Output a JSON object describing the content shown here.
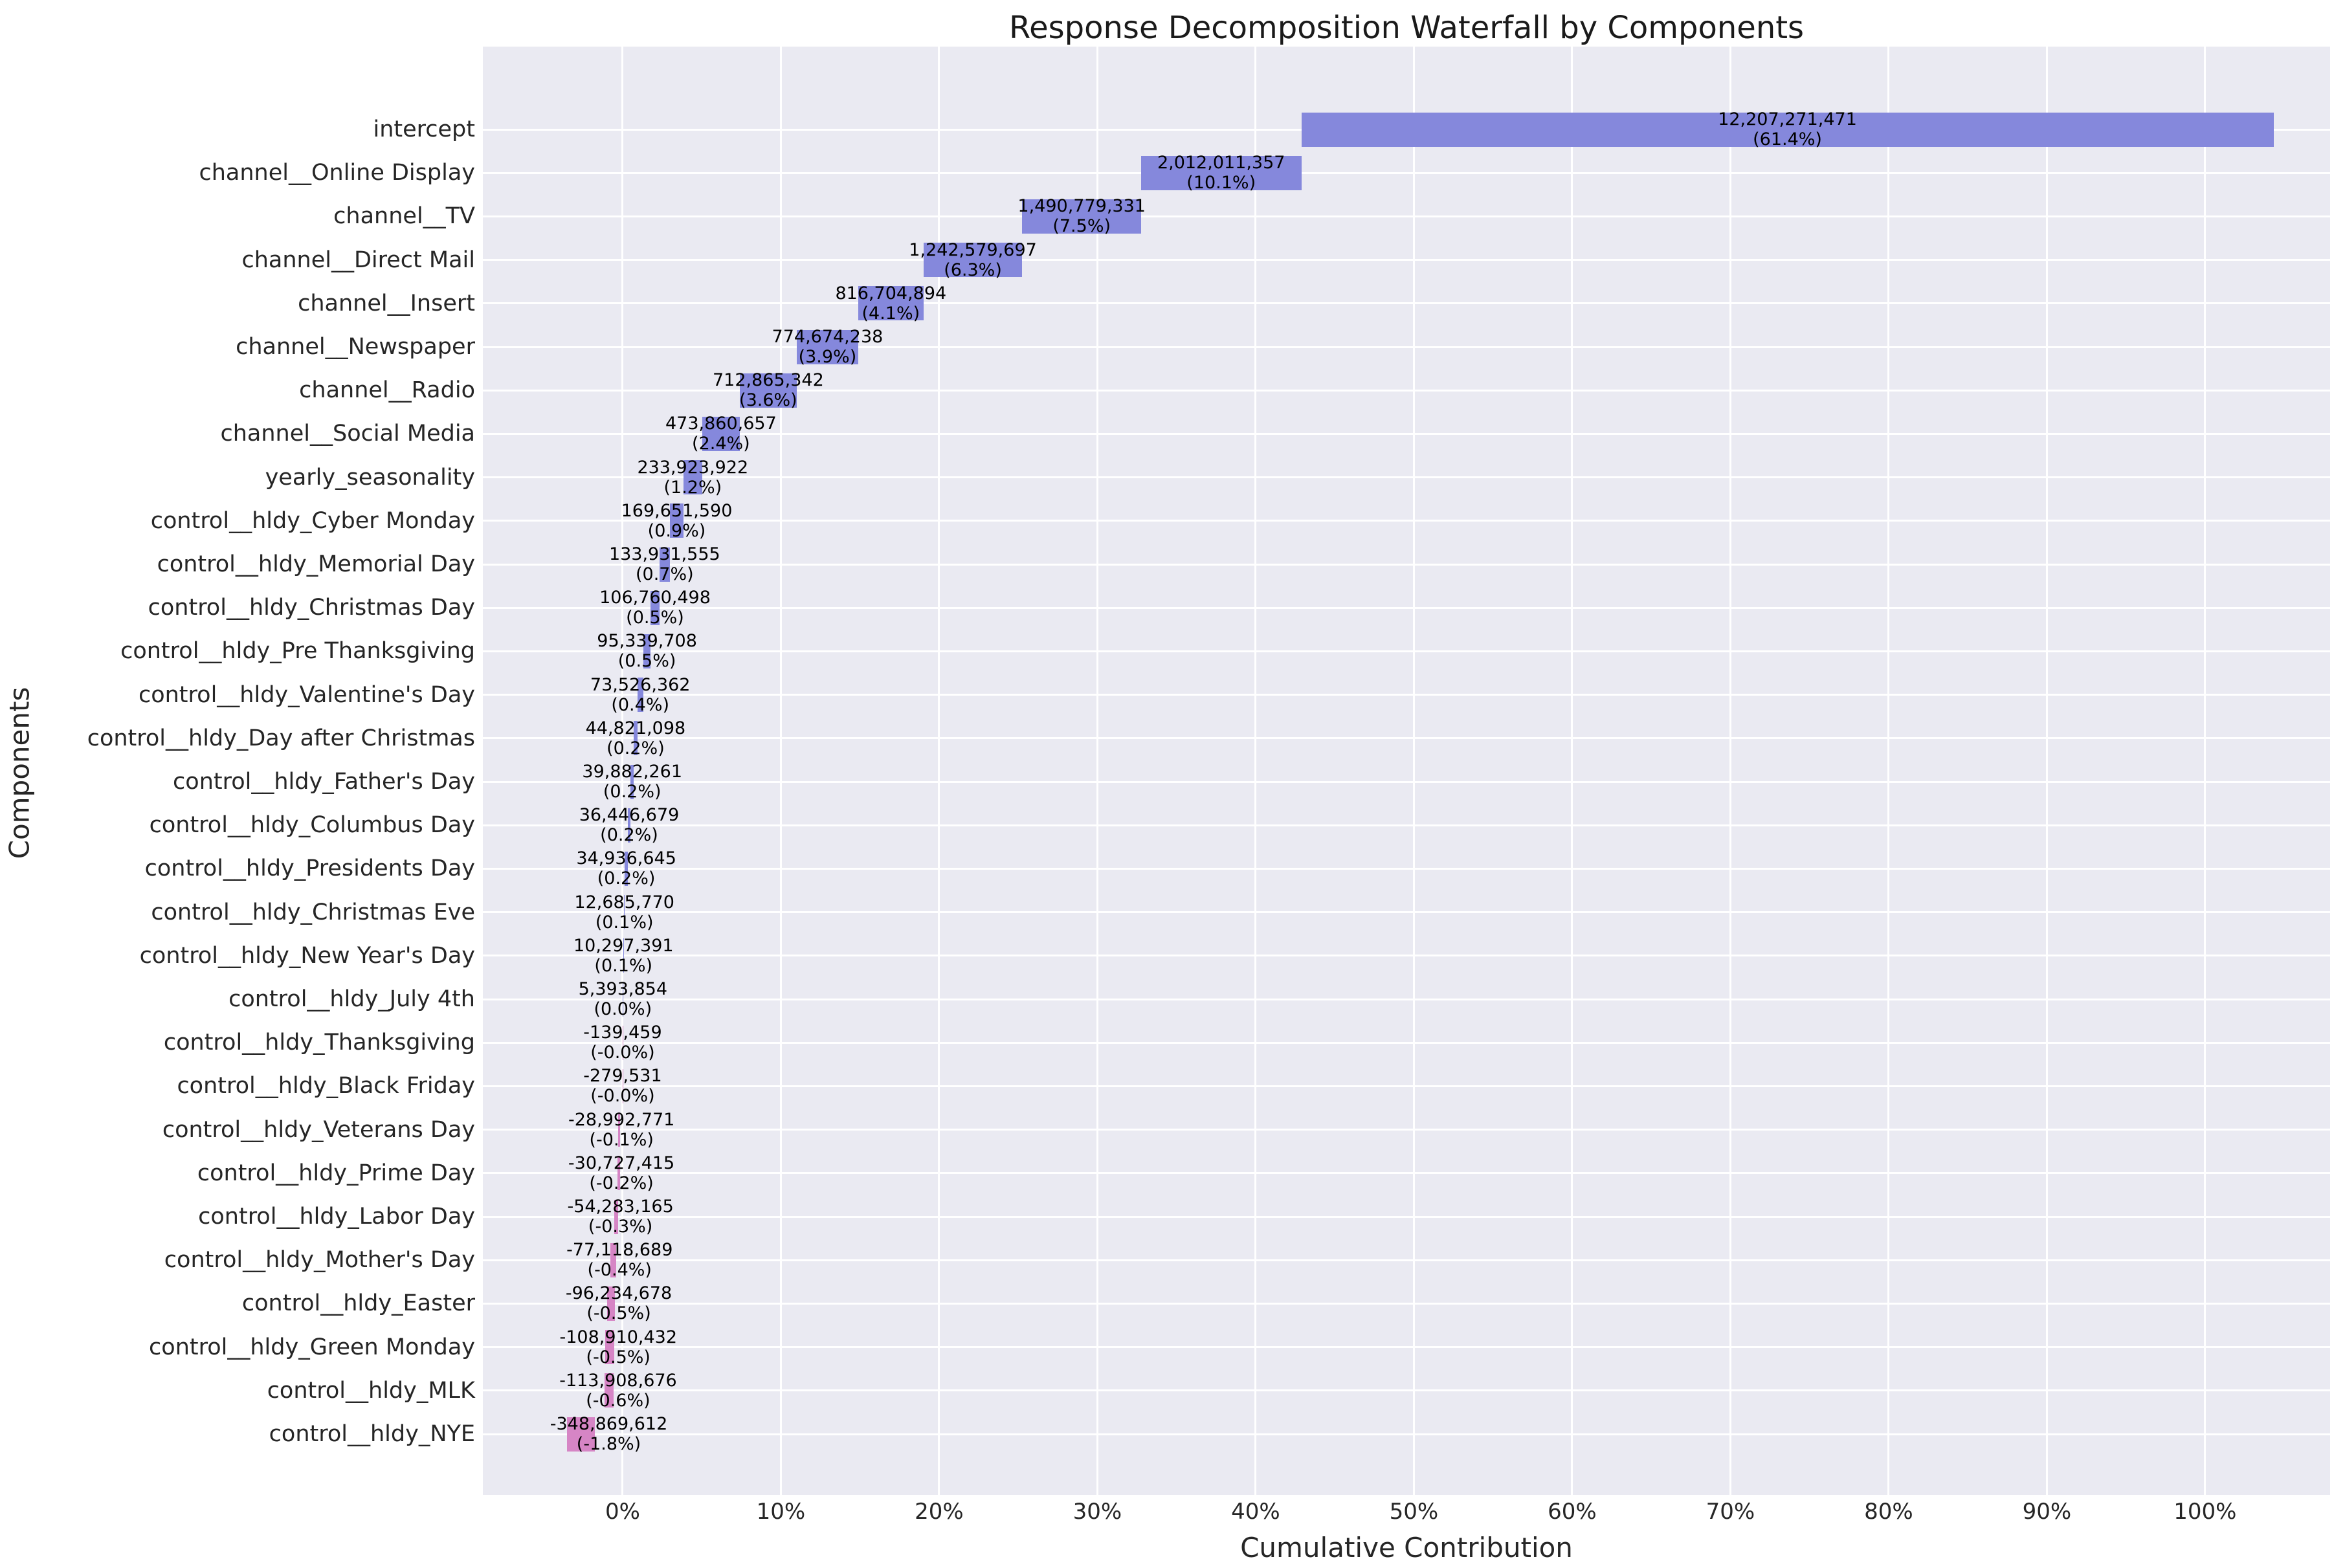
{
  "title": "Response Decomposition Waterfall by Components",
  "axes": {
    "x_label": "Cumulative Contribution",
    "y_label": "Components"
  },
  "colors": {
    "positive_bar": "#8588DC",
    "negative_bar": "#D685C5",
    "plot_background": "#EAEAF2",
    "gridline": "#FFFFFF",
    "tick_text": "#262626",
    "annotation_text": "#000000",
    "title_text": "#1A1A1A",
    "figure_background": "#FFFFFF"
  },
  "chart_data": {
    "type": "bar",
    "subtype": "horizontal-waterfall",
    "title": "Response Decomposition Waterfall by Components",
    "xlabel": "Cumulative Contribution",
    "ylabel": "Components",
    "legend": null,
    "grid": true,
    "xlim_pct": [
      -8.834,
      107.9
    ],
    "x_ticks": [
      {
        "pct": 0,
        "label": "0%"
      },
      {
        "pct": 10,
        "label": "10%"
      },
      {
        "pct": 20,
        "label": "20%"
      },
      {
        "pct": 30,
        "label": "30%"
      },
      {
        "pct": 40,
        "label": "40%"
      },
      {
        "pct": 50,
        "label": "50%"
      },
      {
        "pct": 60,
        "label": "60%"
      },
      {
        "pct": 70,
        "label": "70%"
      },
      {
        "pct": 80,
        "label": "80%"
      },
      {
        "pct": 90,
        "label": "90%"
      },
      {
        "pct": 100,
        "label": "100%"
      }
    ],
    "items": [
      {
        "label": "intercept",
        "value": 12207271471,
        "value_label": "12,207,271,471",
        "percent_label": "(61.4%)"
      },
      {
        "label": "channel__Online Display",
        "value": 2012011357,
        "value_label": "2,012,011,357",
        "percent_label": "(10.1%)"
      },
      {
        "label": "channel__TV",
        "value": 1490779331,
        "value_label": "1,490,779,331",
        "percent_label": "(7.5%)"
      },
      {
        "label": "channel__Direct Mail",
        "value": 1242579697,
        "value_label": "1,242,579,697",
        "percent_label": "(6.3%)"
      },
      {
        "label": "channel__Insert",
        "value": 816704894,
        "value_label": "816,704,894",
        "percent_label": "(4.1%)"
      },
      {
        "label": "channel__Newspaper",
        "value": 774674238,
        "value_label": "774,674,238",
        "percent_label": "(3.9%)"
      },
      {
        "label": "channel__Radio",
        "value": 712865342,
        "value_label": "712,865,342",
        "percent_label": "(3.6%)"
      },
      {
        "label": "channel__Social Media",
        "value": 473860657,
        "value_label": "473,860,657",
        "percent_label": "(2.4%)"
      },
      {
        "label": "yearly_seasonality",
        "value": 233923922,
        "value_label": "233,923,922",
        "percent_label": "(1.2%)"
      },
      {
        "label": "control__hldy_Cyber Monday",
        "value": 169651590,
        "value_label": "169,651,590",
        "percent_label": "(0.9%)"
      },
      {
        "label": "control__hldy_Memorial Day",
        "value": 133931555,
        "value_label": "133,931,555",
        "percent_label": "(0.7%)"
      },
      {
        "label": "control__hldy_Christmas Day",
        "value": 106760498,
        "value_label": "106,760,498",
        "percent_label": "(0.5%)"
      },
      {
        "label": "control__hldy_Pre Thanksgiving",
        "value": 95339708,
        "value_label": "95,339,708",
        "percent_label": "(0.5%)"
      },
      {
        "label": "control__hldy_Valentine's Day",
        "value": 73526362,
        "value_label": "73,526,362",
        "percent_label": "(0.4%)"
      },
      {
        "label": "control__hldy_Day after Christmas",
        "value": 44821098,
        "value_label": "44,821,098",
        "percent_label": "(0.2%)"
      },
      {
        "label": "control__hldy_Father's Day",
        "value": 39882261,
        "value_label": "39,882,261",
        "percent_label": "(0.2%)"
      },
      {
        "label": "control__hldy_Columbus Day",
        "value": 36446679,
        "value_label": "36,446,679",
        "percent_label": "(0.2%)"
      },
      {
        "label": "control__hldy_Presidents Day",
        "value": 34936645,
        "value_label": "34,936,645",
        "percent_label": "(0.2%)"
      },
      {
        "label": "control__hldy_Christmas Eve",
        "value": 12685770,
        "value_label": "12,685,770",
        "percent_label": "(0.1%)"
      },
      {
        "label": "control__hldy_New Year's Day",
        "value": 10297391,
        "value_label": "10,297,391",
        "percent_label": "(0.1%)"
      },
      {
        "label": "control__hldy_July 4th",
        "value": 5393854,
        "value_label": "5,393,854",
        "percent_label": "(0.0%)"
      },
      {
        "label": "control__hldy_Thanksgiving",
        "value": -139459,
        "value_label": "-139,459",
        "percent_label": "(-0.0%)"
      },
      {
        "label": "control__hldy_Black Friday",
        "value": -279531,
        "value_label": "-279,531",
        "percent_label": "(-0.0%)"
      },
      {
        "label": "control__hldy_Veterans Day",
        "value": -28992771,
        "value_label": "-28,992,771",
        "percent_label": "(-0.1%)"
      },
      {
        "label": "control__hldy_Prime Day",
        "value": -30727415,
        "value_label": "-30,727,415",
        "percent_label": "(-0.2%)"
      },
      {
        "label": "control__hldy_Labor Day",
        "value": -54283165,
        "value_label": "-54,283,165",
        "percent_label": "(-0.3%)"
      },
      {
        "label": "control__hldy_Mother's Day",
        "value": -77118689,
        "value_label": "-77,118,689",
        "percent_label": "(-0.4%)"
      },
      {
        "label": "control__hldy_Easter",
        "value": -96234678,
        "value_label": "-96,234,678",
        "percent_label": "(-0.5%)"
      },
      {
        "label": "control__hldy_Green Monday",
        "value": -108910432,
        "value_label": "-108,910,432",
        "percent_label": "(-0.5%)"
      },
      {
        "label": "control__hldy_MLK",
        "value": -113908676,
        "value_label": "-113,908,676",
        "percent_label": "(-0.6%)"
      },
      {
        "label": "control__hldy_NYE",
        "value": -348869612,
        "value_label": "-348,869,612",
        "percent_label": "(-1.8%)"
      }
    ]
  }
}
